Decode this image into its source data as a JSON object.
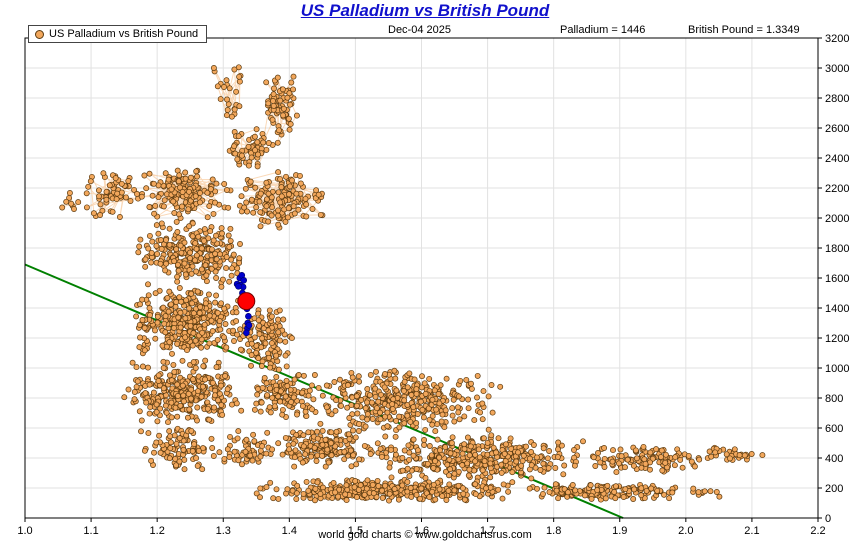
{
  "title": "US Palladium vs British Pound",
  "header": {
    "date": "Dec-04  2025",
    "palladium_value": "Palladium = 1446",
    "pound_value": "British Pound = 1.3349"
  },
  "legend": {
    "label": "US Palladium vs British Pound"
  },
  "footer": "world gold charts © www.goldchartsrus.com",
  "chart_data": {
    "type": "scatter",
    "title": "US Palladium vs British Pound",
    "xlabel": "",
    "ylabel": "",
    "xlim": [
      1.0,
      2.2
    ],
    "ylim": [
      0,
      3200
    ],
    "x_ticks": [
      1.0,
      1.1,
      1.2,
      1.3,
      1.4,
      1.5,
      1.6,
      1.7,
      1.8,
      1.9,
      2.0,
      2.1,
      2.2
    ],
    "y_ticks": [
      0,
      200,
      400,
      600,
      800,
      1000,
      1200,
      1400,
      1600,
      1800,
      2000,
      2200,
      2400,
      2600,
      2800,
      3000,
      3200
    ],
    "grid": true,
    "legend_position": "top-left",
    "colors": {
      "point": "#f2a75c",
      "point_edge": "#5a3a10",
      "path": "#f6bb80",
      "grid": "#e2e2e2",
      "trend": "#008000",
      "recent": "#0000cd",
      "current": "#ff0000",
      "title": "#1111cc"
    },
    "trendline": {
      "x1": 1.0,
      "y1": 1690,
      "x2": 1.905,
      "y2": 0,
      "color": "#008000"
    },
    "current_point": {
      "x": 1.3349,
      "y": 1446,
      "color": "#ff0000"
    },
    "recent_points": [
      [
        1.321,
        1560
      ],
      [
        1.325,
        1600
      ],
      [
        1.328,
        1618
      ],
      [
        1.331,
        1585
      ],
      [
        1.326,
        1552
      ],
      [
        1.33,
        1540
      ],
      [
        1.323,
        1545
      ],
      [
        1.329,
        1500
      ],
      [
        1.332,
        1470
      ],
      [
        1.334,
        1452
      ],
      [
        1.336,
        1395
      ],
      [
        1.338,
        1345
      ],
      [
        1.337,
        1300
      ],
      [
        1.3365,
        1265
      ],
      [
        1.335,
        1235
      ],
      [
        1.339,
        1285
      ]
    ],
    "seed": 7,
    "point_clusters": [
      {
        "x": [
          1.285,
          1.335
        ],
        "y": [
          2600,
          3050
        ],
        "count": 25,
        "connect": true
      },
      {
        "x": [
          1.355,
          1.415
        ],
        "y": [
          2450,
          3000
        ],
        "count": 70,
        "connect": true
      },
      {
        "x": [
          1.3,
          1.38
        ],
        "y": [
          2300,
          2600
        ],
        "count": 60,
        "connect": true
      },
      {
        "x": [
          1.045,
          1.085
        ],
        "y": [
          2050,
          2180
        ],
        "count": 8,
        "connect": true
      },
      {
        "x": [
          1.08,
          1.18
        ],
        "y": [
          2000,
          2320
        ],
        "count": 60,
        "connect": true
      },
      {
        "x": [
          1.17,
          1.32
        ],
        "y": [
          1980,
          2350
        ],
        "count": 150,
        "connect": true
      },
      {
        "x": [
          1.32,
          1.46
        ],
        "y": [
          1900,
          2350
        ],
        "count": 140,
        "connect": true
      },
      {
        "x": [
          1.17,
          1.34
        ],
        "y": [
          1550,
          1990
        ],
        "count": 260,
        "connect": false
      },
      {
        "x": [
          1.16,
          1.33
        ],
        "y": [
          1060,
          1560
        ],
        "count": 340,
        "connect": false
      },
      {
        "x": [
          1.32,
          1.41
        ],
        "y": [
          980,
          1420
        ],
        "count": 130,
        "connect": false
      },
      {
        "x": [
          1.14,
          1.34
        ],
        "y": [
          620,
          1070
        ],
        "count": 300,
        "connect": false
      },
      {
        "x": [
          1.34,
          1.44
        ],
        "y": [
          640,
          1000
        ],
        "count": 110,
        "connect": false
      },
      {
        "x": [
          1.17,
          1.29
        ],
        "y": [
          310,
          620
        ],
        "count": 90,
        "connect": false
      },
      {
        "x": [
          1.29,
          1.38
        ],
        "y": [
          300,
          600
        ],
        "count": 60,
        "connect": false
      },
      {
        "x": [
          1.42,
          1.73
        ],
        "y": [
          560,
          1000
        ],
        "count": 380,
        "connect": false
      },
      {
        "x": [
          1.38,
          1.52
        ],
        "y": [
          330,
          600
        ],
        "count": 170,
        "connect": false
      },
      {
        "x": [
          1.5,
          1.86
        ],
        "y": [
          250,
          560
        ],
        "count": 380,
        "connect": false
      },
      {
        "x": [
          1.84,
          2.03
        ],
        "y": [
          300,
          500
        ],
        "count": 130,
        "connect": false
      },
      {
        "x": [
          2.02,
          2.12
        ],
        "y": [
          380,
          470
        ],
        "count": 35,
        "connect": false
      },
      {
        "x": [
          1.34,
          1.76
        ],
        "y": [
          110,
          260
        ],
        "count": 340,
        "connect": false
      },
      {
        "x": [
          1.74,
          2.01
        ],
        "y": [
          120,
          230
        ],
        "count": 150,
        "connect": false
      },
      {
        "x": [
          1.99,
          2.06
        ],
        "y": [
          140,
          200
        ],
        "count": 10,
        "connect": false
      }
    ]
  }
}
